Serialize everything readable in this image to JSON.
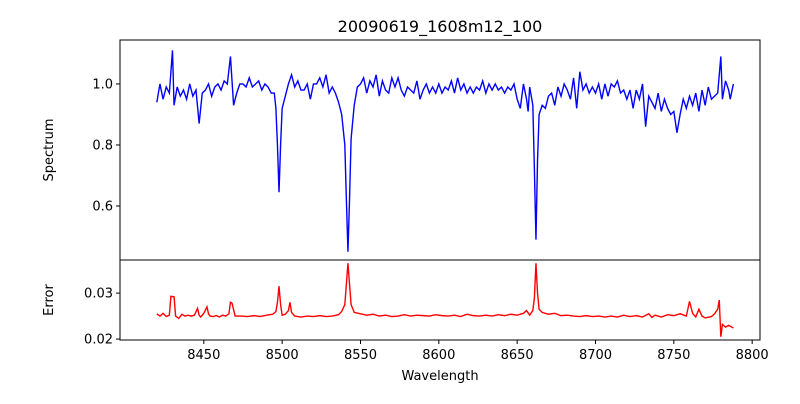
{
  "chart_data": [
    {
      "type": "line",
      "title": "20090619_1608m12_100",
      "xlabel": "",
      "ylabel": "Spectrum",
      "xlim": [
        8396.5,
        8805
      ],
      "ylim": [
        0.423,
        1.144
      ],
      "yticks": [
        0.6,
        0.8,
        1.0
      ],
      "ytick_labels": [
        "0.6",
        "0.8",
        "1.0"
      ],
      "grid": false,
      "color": "#0000ff",
      "series": [
        {
          "name": "Spectrum",
          "x": [
            8420,
            8422,
            8424,
            8426,
            8428,
            8430,
            8431,
            8433,
            8435,
            8437,
            8439,
            8441,
            8443,
            8445,
            8447,
            8449,
            8451,
            8453,
            8455,
            8457,
            8459,
            8461,
            8463,
            8465,
            8467,
            8469,
            8471,
            8473,
            8475,
            8477,
            8479,
            8481,
            8483,
            8485,
            8487,
            8489,
            8491,
            8493,
            8495,
            8496,
            8497,
            8498,
            8499,
            8500,
            8502,
            8504,
            8506,
            8508,
            8510,
            8512,
            8514,
            8516,
            8518,
            8520,
            8522,
            8524,
            8526,
            8528,
            8530,
            8532,
            8534,
            8536,
            8538,
            8540,
            8541,
            8542,
            8543,
            8544,
            8546,
            8548,
            8550,
            8552,
            8554,
            8556,
            8558,
            8560,
            8562,
            8564,
            8566,
            8568,
            8570,
            8572,
            8574,
            8576,
            8578,
            8580,
            8582,
            8584,
            8586,
            8588,
            8590,
            8592,
            8594,
            8596,
            8598,
            8600,
            8602,
            8604,
            8606,
            8608,
            8610,
            8612,
            8614,
            8616,
            8618,
            8620,
            8622,
            8624,
            8626,
            8628,
            8630,
            8632,
            8634,
            8636,
            8638,
            8640,
            8642,
            8644,
            8646,
            8648,
            8650,
            8652,
            8654,
            8656,
            8657,
            8658,
            8660,
            8661,
            8662,
            8663,
            8664,
            8666,
            8668,
            8670,
            8672,
            8674,
            8676,
            8678,
            8680,
            8682,
            8684,
            8686,
            8688,
            8690,
            8692,
            8694,
            8696,
            8698,
            8700,
            8702,
            8704,
            8706,
            8708,
            8710,
            8712,
            8714,
            8716,
            8718,
            8720,
            8722,
            8724,
            8726,
            8728,
            8730,
            8732,
            8734,
            8736,
            8738,
            8740,
            8742,
            8744,
            8746,
            8748,
            8750,
            8752,
            8754,
            8756,
            8758,
            8760,
            8762,
            8764,
            8766,
            8768,
            8770,
            8772,
            8774,
            8776,
            8778,
            8780,
            8781,
            8783,
            8785,
            8786,
            8788
          ],
          "y": [
            0.94,
            1.0,
            0.95,
            0.99,
            0.97,
            1.11,
            0.93,
            0.99,
            0.96,
            0.98,
            0.95,
            1.0,
            0.96,
            0.98,
            0.87,
            0.97,
            0.98,
            1.0,
            0.96,
            0.99,
            1.0,
            0.98,
            1.01,
            1.0,
            1.09,
            0.93,
            0.97,
            1.0,
            1.0,
            0.99,
            1.02,
            0.99,
            1.0,
            1.01,
            0.98,
            1.0,
            0.99,
            0.97,
            0.97,
            0.92,
            0.8,
            0.645,
            0.8,
            0.92,
            0.96,
            1.0,
            1.03,
            0.99,
            1.01,
            0.98,
            0.98,
            1.0,
            0.95,
            1.0,
            1.0,
            1.02,
            0.99,
            1.03,
            0.97,
            0.99,
            0.97,
            0.94,
            0.9,
            0.8,
            0.62,
            0.45,
            0.62,
            0.82,
            0.93,
            0.99,
            1.0,
            1.02,
            0.97,
            1.01,
            0.99,
            1.03,
            0.96,
            1.01,
            0.98,
            0.97,
            1.02,
            0.99,
            1.02,
            0.98,
            0.96,
            0.99,
            0.98,
            0.97,
            1.01,
            0.95,
            0.98,
            1.0,
            0.97,
            0.99,
            0.97,
            1.0,
            0.97,
            0.99,
            0.98,
            1.01,
            0.97,
            1.02,
            0.98,
            1.0,
            0.97,
            0.99,
            0.97,
            0.99,
            0.98,
            1.01,
            0.97,
            1.0,
            0.98,
            1.0,
            0.98,
            0.99,
            0.97,
            0.99,
            0.98,
            1.0,
            0.95,
            0.92,
            1.0,
            0.95,
            0.91,
            0.99,
            0.93,
            0.72,
            0.49,
            0.75,
            0.9,
            0.93,
            0.92,
            0.96,
            0.97,
            0.93,
            0.99,
            0.96,
            1.0,
            0.98,
            0.95,
            1.02,
            0.92,
            1.04,
            0.98,
            1.0,
            0.97,
            0.99,
            0.97,
            1.0,
            0.95,
            1.0,
            0.96,
            1.0,
            0.99,
            1.01,
            0.97,
            0.98,
            0.95,
            0.98,
            0.92,
            0.98,
            0.95,
            1.0,
            0.86,
            0.96,
            0.94,
            0.92,
            0.97,
            0.91,
            0.95,
            0.92,
            0.9,
            0.91,
            0.84,
            0.9,
            0.95,
            0.92,
            0.96,
            0.93,
            0.97,
            0.91,
            0.98,
            0.93,
            0.99,
            0.95,
            0.96,
            0.97,
            1.09,
            0.95,
            1.01,
            0.98,
            0.95,
            1.0
          ]
        }
      ]
    },
    {
      "type": "line",
      "title": "",
      "xlabel": "Wavelength",
      "ylabel": "Error",
      "xlim": [
        8396.5,
        8805
      ],
      "ylim": [
        0.0198,
        0.0372
      ],
      "xticks": [
        8450,
        8500,
        8550,
        8600,
        8650,
        8700,
        8750,
        8800
      ],
      "xtick_labels": [
        "8450",
        "8500",
        "8550",
        "8600",
        "8650",
        "8700",
        "8750",
        "8800"
      ],
      "yticks": [
        0.02,
        0.03
      ],
      "ytick_labels": [
        "0.02",
        "0.03"
      ],
      "grid": false,
      "color": "#ff0000",
      "series": [
        {
          "name": "Error",
          "x": [
            8420,
            8422,
            8424,
            8426,
            8428,
            8429,
            8431,
            8432,
            8434,
            8436,
            8438,
            8440,
            8442,
            8444,
            8446,
            8447,
            8448,
            8450,
            8452,
            8453,
            8454,
            8456,
            8458,
            8460,
            8462,
            8464,
            8466,
            8467,
            8468,
            8470,
            8474,
            8478,
            8482,
            8486,
            8490,
            8494,
            8496,
            8497,
            8498,
            8499,
            8500,
            8502,
            8504,
            8505,
            8506,
            8508,
            8512,
            8516,
            8520,
            8524,
            8528,
            8532,
            8536,
            8538,
            8540,
            8541,
            8542,
            8543,
            8544,
            8546,
            8550,
            8554,
            8558,
            8562,
            8566,
            8570,
            8574,
            8578,
            8582,
            8586,
            8590,
            8594,
            8598,
            8602,
            8606,
            8610,
            8614,
            8618,
            8622,
            8626,
            8630,
            8634,
            8638,
            8642,
            8646,
            8650,
            8654,
            8656,
            8658,
            8660,
            8661,
            8662,
            8663,
            8664,
            8666,
            8670,
            8674,
            8678,
            8682,
            8686,
            8690,
            8694,
            8698,
            8702,
            8706,
            8710,
            8714,
            8718,
            8722,
            8726,
            8730,
            8734,
            8736,
            8738,
            8742,
            8746,
            8750,
            8754,
            8758,
            8760,
            8762,
            8764,
            8766,
            8768,
            8770,
            8774,
            8776,
            8778,
            8779,
            8780,
            8781,
            8783,
            8785,
            8788
          ],
          "y": [
            0.0255,
            0.025,
            0.0256,
            0.0249,
            0.0252,
            0.0293,
            0.0292,
            0.025,
            0.0245,
            0.0254,
            0.025,
            0.0252,
            0.025,
            0.0252,
            0.0267,
            0.0252,
            0.0248,
            0.0256,
            0.027,
            0.0255,
            0.025,
            0.0249,
            0.0251,
            0.0248,
            0.0252,
            0.025,
            0.0255,
            0.028,
            0.0278,
            0.025,
            0.025,
            0.0249,
            0.0251,
            0.0249,
            0.0252,
            0.0254,
            0.026,
            0.028,
            0.0315,
            0.0275,
            0.0252,
            0.0254,
            0.0262,
            0.028,
            0.0258,
            0.025,
            0.0248,
            0.025,
            0.0249,
            0.0251,
            0.0249,
            0.025,
            0.0253,
            0.026,
            0.0275,
            0.032,
            0.0365,
            0.032,
            0.0275,
            0.0258,
            0.0255,
            0.0252,
            0.0254,
            0.025,
            0.0252,
            0.0249,
            0.025,
            0.0253,
            0.025,
            0.0252,
            0.0251,
            0.025,
            0.0253,
            0.0251,
            0.025,
            0.0252,
            0.0249,
            0.0254,
            0.0251,
            0.025,
            0.0252,
            0.025,
            0.0253,
            0.0251,
            0.0254,
            0.0252,
            0.0256,
            0.0262,
            0.0252,
            0.0262,
            0.029,
            0.0365,
            0.03,
            0.0265,
            0.0258,
            0.0254,
            0.0256,
            0.0251,
            0.0252,
            0.025,
            0.0249,
            0.0251,
            0.0249,
            0.025,
            0.0248,
            0.025,
            0.0248,
            0.0252,
            0.0249,
            0.0251,
            0.0248,
            0.0255,
            0.0247,
            0.0252,
            0.0248,
            0.0253,
            0.0251,
            0.0255,
            0.025,
            0.0282,
            0.0256,
            0.0248,
            0.0265,
            0.025,
            0.0246,
            0.0249,
            0.0255,
            0.0265,
            0.0285,
            0.0205,
            0.0232,
            0.0226,
            0.023,
            0.0224
          ]
        }
      ]
    }
  ]
}
